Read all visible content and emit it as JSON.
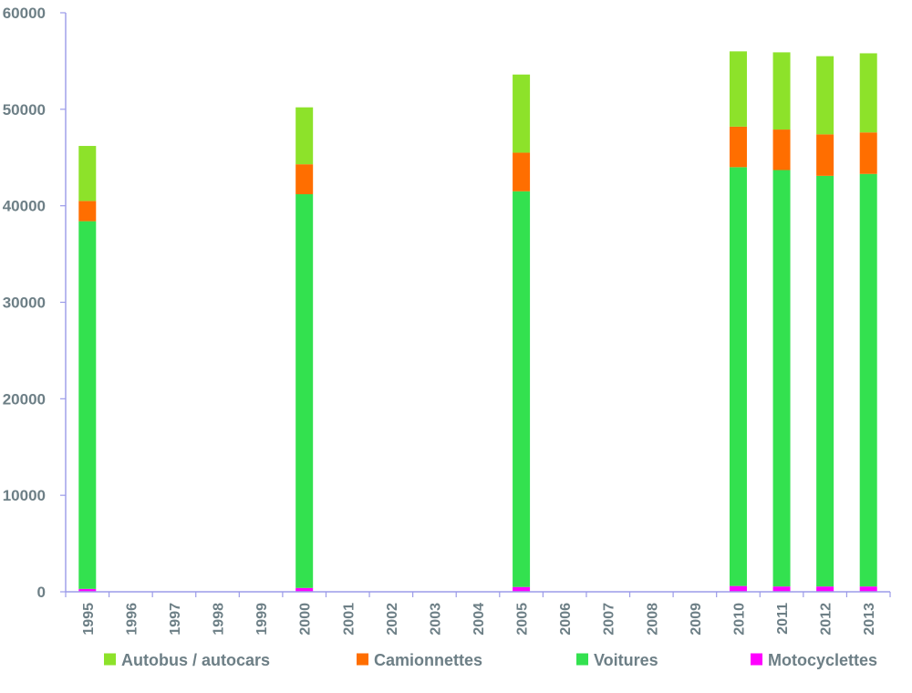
{
  "chart_data": {
    "type": "bar",
    "stacked": true,
    "title": "",
    "xlabel": "",
    "ylabel": "",
    "categories": [
      "1995",
      "1996",
      "1997",
      "1998",
      "1999",
      "2000",
      "2001",
      "2002",
      "2003",
      "2004",
      "2005",
      "2006",
      "2007",
      "2008",
      "2009",
      "2010",
      "2011",
      "2012",
      "2013"
    ],
    "ylim": [
      0,
      60000
    ],
    "yticks": [
      0,
      10000,
      20000,
      30000,
      40000,
      50000,
      60000
    ],
    "grid": false,
    "legend_position": "bottom",
    "series": [
      {
        "name": "Motocyclettes",
        "color": "#ff00ff",
        "values": [
          300,
          null,
          null,
          null,
          null,
          400,
          null,
          null,
          null,
          null,
          500,
          null,
          null,
          null,
          null,
          600,
          550,
          550,
          550
        ]
      },
      {
        "name": "Voitures",
        "color": "#33e14f",
        "values": [
          38100,
          null,
          null,
          null,
          null,
          40800,
          null,
          null,
          null,
          null,
          41000,
          null,
          null,
          null,
          null,
          43400,
          43150,
          42550,
          42750
        ]
      },
      {
        "name": "Camionnettes",
        "color": "#ff6e00",
        "values": [
          2100,
          null,
          null,
          null,
          null,
          3100,
          null,
          null,
          null,
          null,
          4000,
          null,
          null,
          null,
          null,
          4200,
          4200,
          4300,
          4300
        ]
      },
      {
        "name": "Autobus / autocars",
        "color": "#8de22a",
        "values": [
          5700,
          null,
          null,
          null,
          null,
          5900,
          null,
          null,
          null,
          null,
          8100,
          null,
          null,
          null,
          null,
          7800,
          8000,
          8100,
          8200
        ]
      }
    ],
    "legend_order": [
      "Autobus / autocars",
      "Camionnettes",
      "Voitures",
      "Motocyclettes"
    ]
  }
}
